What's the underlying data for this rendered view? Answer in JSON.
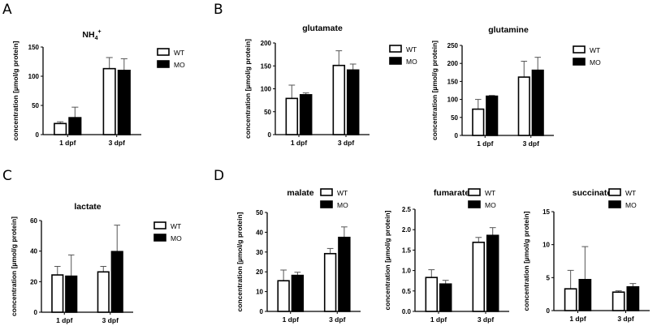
{
  "panels": [
    {
      "letter": "A"
    },
    {
      "letter": "B"
    },
    {
      "letter": "C"
    },
    {
      "letter": "D"
    }
  ],
  "chart_data": [
    {
      "panel": "A",
      "type": "bar",
      "title": "NH4+",
      "title_main": "NH",
      "title_sub": "4",
      "title_sup": "+",
      "xlabel": "",
      "ylabel": "concentration [µmol/g protein]",
      "categories": [
        "1 dpf",
        "3 dpf"
      ],
      "ylim": [
        0,
        150
      ],
      "yticks": [
        0,
        50,
        100,
        150
      ],
      "legend": "right",
      "series": [
        {
          "name": "WT",
          "fill": "#ffffff",
          "values": [
            19,
            113
          ],
          "error_upper": [
            22,
            132
          ]
        },
        {
          "name": "MO",
          "fill": "#000000",
          "values": [
            29,
            110
          ],
          "error_upper": [
            47,
            130
          ]
        }
      ]
    },
    {
      "panel": "B",
      "type": "bar",
      "title": "glutamate",
      "xlabel": "",
      "ylabel": "concentration [µmol/g protein]",
      "categories": [
        "1 dpf",
        "3 dpf"
      ],
      "ylim": [
        0,
        200
      ],
      "yticks": [
        0,
        50,
        100,
        150,
        200
      ],
      "legend": "right",
      "series": [
        {
          "name": "WT",
          "fill": "#ffffff",
          "values": [
            79,
            151
          ],
          "error_upper": [
            108,
            183
          ]
        },
        {
          "name": "MO",
          "fill": "#000000",
          "values": [
            87,
            141
          ],
          "error_upper": [
            91,
            154
          ]
        }
      ]
    },
    {
      "panel": "B",
      "type": "bar",
      "title": "glutamine",
      "xlabel": "",
      "ylabel": "concentration [µmol/g protein]",
      "categories": [
        "1 dpf",
        "3 dpf"
      ],
      "ylim": [
        0,
        250
      ],
      "yticks": [
        0,
        50,
        100,
        150,
        200,
        250
      ],
      "legend": "right",
      "series": [
        {
          "name": "WT",
          "fill": "#ffffff",
          "values": [
            73,
            162
          ],
          "error_upper": [
            100,
            206
          ]
        },
        {
          "name": "MO",
          "fill": "#000000",
          "values": [
            109,
            181
          ],
          "error_upper": [
            111,
            217
          ]
        }
      ]
    },
    {
      "panel": "C",
      "type": "bar",
      "title": "lactate",
      "xlabel": "",
      "ylabel": "concentration [µmol/g protein]",
      "categories": [
        "1 dpf",
        "3 dpf"
      ],
      "ylim": [
        0,
        60
      ],
      "yticks": [
        0,
        20,
        40,
        60
      ],
      "legend": "right",
      "series": [
        {
          "name": "WT",
          "fill": "#ffffff",
          "values": [
            24.4,
            26.4
          ],
          "error_upper": [
            30,
            30
          ]
        },
        {
          "name": "MO",
          "fill": "#000000",
          "values": [
            23.6,
            39.7
          ],
          "error_upper": [
            37.5,
            57
          ]
        }
      ]
    },
    {
      "panel": "D",
      "type": "bar",
      "title": "malate",
      "xlabel": "",
      "ylabel": "concentration [µmol/g protein]",
      "categories": [
        "1 dpf",
        "3 dpf"
      ],
      "ylim": [
        0,
        50
      ],
      "yticks": [
        0,
        10,
        20,
        30,
        40,
        50
      ],
      "legend": "top-right",
      "series": [
        {
          "name": "WT",
          "fill": "#ffffff",
          "values": [
            15.5,
            29.2
          ],
          "error_upper": [
            20.9,
            31.8
          ]
        },
        {
          "name": "MO",
          "fill": "#000000",
          "values": [
            18.2,
            37.4
          ],
          "error_upper": [
            19.8,
            42.7
          ]
        }
      ]
    },
    {
      "panel": "D",
      "type": "bar",
      "title": "fumarate",
      "xlabel": "",
      "ylabel": "concentration [µmol/g protein]",
      "categories": [
        "1 dpf",
        "3 dpf"
      ],
      "ylim": [
        0,
        2.5
      ],
      "yticks": [
        "0.0",
        "0.5",
        "1.0",
        "1.5",
        "2.0",
        "2.5"
      ],
      "legend": "top-right",
      "series": [
        {
          "name": "WT",
          "fill": "#ffffff",
          "values": [
            0.83,
            1.69
          ],
          "error_upper": [
            1.02,
            1.81
          ]
        },
        {
          "name": "MO",
          "fill": "#000000",
          "values": [
            0.67,
            1.86
          ],
          "error_upper": [
            0.76,
            2.05
          ]
        }
      ]
    },
    {
      "panel": "D",
      "type": "bar",
      "title": "succinate",
      "xlabel": "",
      "ylabel": "concentration [µmol/g protein]",
      "categories": [
        "1 dpf",
        "3 dpf"
      ],
      "ylim": [
        0,
        15
      ],
      "yticks": [
        0,
        5,
        10,
        15
      ],
      "legend": "top-right",
      "series": [
        {
          "name": "WT",
          "fill": "#ffffff",
          "values": [
            3.3,
            2.8
          ],
          "error_upper": [
            6.1,
            3.0
          ]
        },
        {
          "name": "MO",
          "fill": "#000000",
          "values": [
            4.7,
            3.6
          ],
          "error_upper": [
            9.7,
            4.1
          ]
        }
      ]
    }
  ]
}
